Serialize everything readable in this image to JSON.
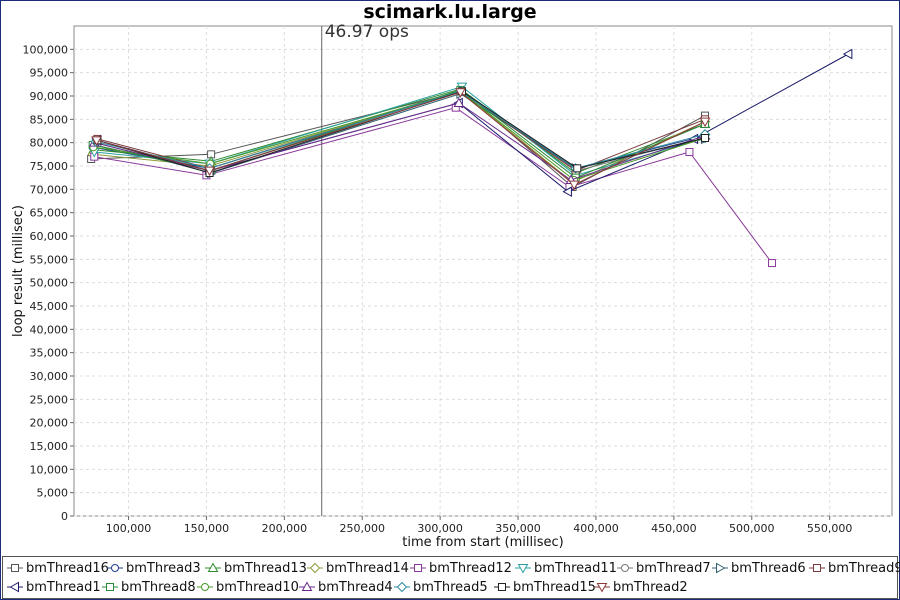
{
  "chart_data": {
    "type": "line",
    "title": "scimark.lu.large",
    "xlabel": "time from start (millisec)",
    "ylabel": "loop result (millisec)",
    "xlim": [
      65000,
      590000
    ],
    "ylim": [
      0,
      105000
    ],
    "x_ticks": [
      100000,
      150000,
      200000,
      250000,
      300000,
      350000,
      400000,
      450000,
      500000,
      550000
    ],
    "y_ticks": [
      0,
      5000,
      10000,
      15000,
      20000,
      25000,
      30000,
      35000,
      40000,
      45000,
      50000,
      55000,
      60000,
      65000,
      70000,
      75000,
      80000,
      85000,
      90000,
      95000,
      100000
    ],
    "x_tick_labels": [
      "100,000",
      "150,000",
      "200,000",
      "250,000",
      "300,000",
      "350,000",
      "400,000",
      "450,000",
      "500,000",
      "550,000"
    ],
    "y_tick_labels": [
      "0",
      "5,000",
      "10,000",
      "15,000",
      "20,000",
      "25,000",
      "30,000",
      "35,000",
      "40,000",
      "45,000",
      "50,000",
      "55,000",
      "60,000",
      "65,000",
      "70,000",
      "75,000",
      "80,000",
      "85,000",
      "90,000",
      "95,000",
      "100,000"
    ],
    "grid": true,
    "legend_position": "bottom",
    "marker_line": {
      "x": 224000,
      "label": "46.97 ops"
    },
    "series": [
      {
        "name": "bmThread16",
        "marker": "square",
        "color": "#555555",
        "points": [
          [
            76000,
            76500
          ],
          [
            153000,
            77500
          ],
          [
            314000,
            91000
          ],
          [
            385000,
            70500
          ],
          [
            470000,
            85800
          ]
        ]
      },
      {
        "name": "bmThread3",
        "marker": "circle",
        "color": "#1f3f8f",
        "points": [
          [
            77000,
            79000
          ],
          [
            152000,
            74500
          ],
          [
            313000,
            91200
          ],
          [
            387000,
            74500
          ],
          [
            470000,
            81500
          ]
        ]
      },
      {
        "name": "bmThread13",
        "marker": "triangle-up",
        "color": "#2e8b2e",
        "points": [
          [
            77500,
            78500
          ],
          [
            153000,
            76000
          ],
          [
            313000,
            91500
          ],
          [
            387000,
            73500
          ],
          [
            470000,
            84000
          ]
        ]
      },
      {
        "name": "bmThread14",
        "marker": "diamond",
        "color": "#8f9a3a",
        "points": [
          [
            77000,
            77500
          ],
          [
            152000,
            75000
          ],
          [
            313000,
            91000
          ],
          [
            385000,
            71500
          ],
          [
            470000,
            84500
          ]
        ]
      },
      {
        "name": "bmThread12",
        "marker": "square",
        "color": "#8a3a9a",
        "points": [
          [
            78000,
            77000
          ],
          [
            150000,
            73000
          ],
          [
            310000,
            87500
          ],
          [
            383000,
            70500
          ],
          [
            460000,
            78000
          ],
          [
            513000,
            54200
          ]
        ]
      },
      {
        "name": "bmThread11",
        "marker": "triangle-down",
        "color": "#2aa0a0",
        "points": [
          [
            78000,
            78000
          ],
          [
            152000,
            75500
          ],
          [
            314000,
            92000
          ],
          [
            387000,
            73000
          ],
          [
            470000,
            81000
          ]
        ]
      },
      {
        "name": "bmThread7",
        "marker": "circle",
        "color": "#777777",
        "points": [
          [
            78500,
            79500
          ],
          [
            152000,
            74000
          ],
          [
            313000,
            91200
          ],
          [
            388000,
            74000
          ],
          [
            470000,
            81200
          ]
        ]
      },
      {
        "name": "bmThread6",
        "marker": "triangle-right",
        "color": "#2f5f6f",
        "points": [
          [
            79000,
            80000
          ],
          [
            153000,
            73500
          ],
          [
            313000,
            90500
          ],
          [
            387000,
            74500
          ],
          [
            470000,
            80800
          ]
        ]
      },
      {
        "name": "bmThread9",
        "marker": "square",
        "color": "#7a3a3a",
        "points": [
          [
            80000,
            80800
          ],
          [
            152000,
            74500
          ],
          [
            313000,
            91000
          ],
          [
            387000,
            74000
          ],
          [
            470000,
            85000
          ]
        ]
      },
      {
        "name": "bmThread1",
        "marker": "triangle-left",
        "color": "#1a1a6a",
        "points": [
          [
            80000,
            80500
          ],
          [
            152000,
            74000
          ],
          [
            312000,
            88500
          ],
          [
            382000,
            69500
          ],
          [
            463000,
            80800
          ],
          [
            562000,
            99000
          ]
        ]
      },
      {
        "name": "bmThread8",
        "marker": "square",
        "color": "#2a8a3a",
        "points": [
          [
            77000,
            79500
          ],
          [
            153000,
            74000
          ],
          [
            313000,
            91300
          ],
          [
            387000,
            72500
          ],
          [
            470000,
            84000
          ]
        ]
      },
      {
        "name": "bmThread10",
        "marker": "circle",
        "color": "#4a9a2a",
        "points": [
          [
            77500,
            79000
          ],
          [
            152500,
            75500
          ],
          [
            313000,
            91000
          ],
          [
            386000,
            72000
          ],
          [
            470000,
            81000
          ]
        ]
      },
      {
        "name": "bmThread4",
        "marker": "triangle-up",
        "color": "#6a2a8a",
        "points": [
          [
            78000,
            80000
          ],
          [
            152000,
            74000
          ],
          [
            312000,
            88500
          ],
          [
            384000,
            72000
          ],
          [
            470000,
            81500
          ]
        ]
      },
      {
        "name": "bmThread5",
        "marker": "diamond",
        "color": "#2a8aa0",
        "points": [
          [
            79000,
            80200
          ],
          [
            152000,
            74500
          ],
          [
            313000,
            91000
          ],
          [
            387000,
            74500
          ],
          [
            470000,
            81800
          ]
        ]
      },
      {
        "name": "bmThread15",
        "marker": "square",
        "color": "#222222",
        "points": [
          [
            80000,
            80500
          ],
          [
            152000,
            73500
          ],
          [
            314000,
            91000
          ],
          [
            388000,
            74500
          ],
          [
            470000,
            81000
          ]
        ]
      },
      {
        "name": "bmThread2",
        "marker": "triangle-down",
        "color": "#8a3a3a",
        "points": [
          [
            79500,
            80500
          ],
          [
            152000,
            74000
          ],
          [
            313000,
            90800
          ],
          [
            386000,
            71000
          ],
          [
            470000,
            84500
          ]
        ]
      }
    ]
  }
}
